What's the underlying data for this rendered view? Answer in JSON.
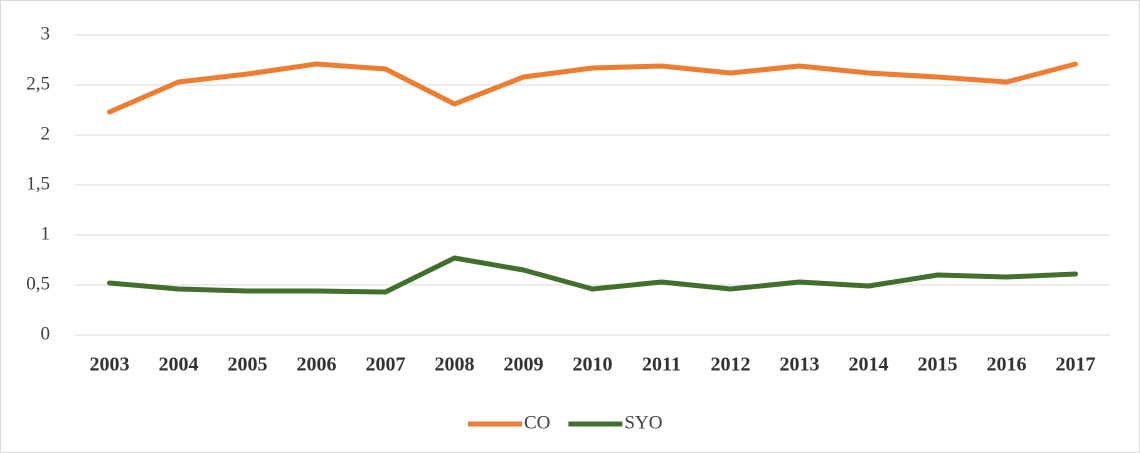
{
  "chart_data": {
    "type": "line",
    "categories": [
      "2003",
      "2004",
      "2005",
      "2006",
      "2007",
      "2008",
      "2009",
      "2010",
      "2011",
      "2012",
      "2013",
      "2014",
      "2015",
      "2016",
      "2017"
    ],
    "series": [
      {
        "name": "CO",
        "color": "#ed7d31",
        "values": [
          2.23,
          2.53,
          2.61,
          2.71,
          2.66,
          2.31,
          2.58,
          2.67,
          2.69,
          2.62,
          2.69,
          2.62,
          2.58,
          2.53,
          2.71
        ]
      },
      {
        "name": "SYO",
        "color": "#426f2d",
        "values": [
          0.52,
          0.46,
          0.44,
          0.44,
          0.43,
          0.77,
          0.65,
          0.46,
          0.53,
          0.46,
          0.53,
          0.49,
          0.6,
          0.58,
          0.61
        ]
      }
    ],
    "ylim": [
      0,
      3
    ],
    "yticks": [
      0,
      {
        "value": 0.5,
        "label": "0,5"
      },
      1,
      {
        "value": 1.5,
        "label": "1,5"
      },
      2,
      {
        "value": 2.5,
        "label": "2,5"
      },
      3
    ],
    "grid": true,
    "legend": "bottom"
  }
}
